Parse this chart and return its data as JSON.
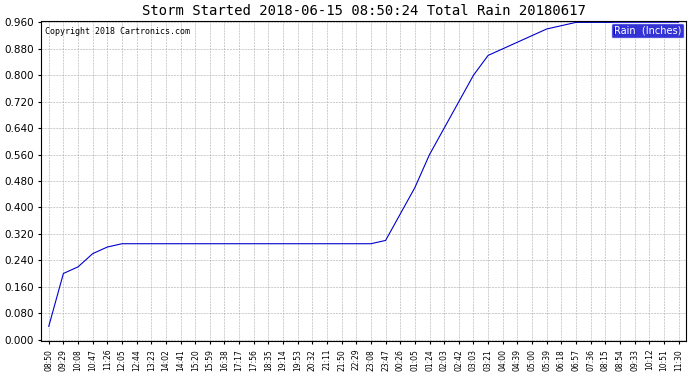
{
  "title": "Storm Started 2018-06-15 08:50:24 Total Rain 20180617",
  "copyright_text": "Copyright 2018 Cartronics.com",
  "legend_label": "Rain  (Inches)",
  "legend_bg": "#0000CC",
  "legend_fg": "#FFFFFF",
  "line_color": "#0000CC",
  "background_color": "#FFFFFF",
  "grid_color": "#AAAAAA",
  "ylim": [
    0.0,
    0.96
  ],
  "yticks": [
    0.0,
    0.08,
    0.16,
    0.24,
    0.32,
    0.4,
    0.48,
    0.56,
    0.64,
    0.72,
    0.8,
    0.88,
    0.96
  ],
  "x_labels": [
    "08:50",
    "09:29",
    "10:08",
    "10:47",
    "11:26",
    "12:05",
    "12:44",
    "13:23",
    "14:02",
    "14:41",
    "15:20",
    "15:59",
    "16:38",
    "17:17",
    "17:56",
    "18:35",
    "19:14",
    "19:53",
    "20:32",
    "21:11",
    "21:50",
    "22:29",
    "23:08",
    "23:47",
    "00:26",
    "01:05",
    "01:24",
    "02:03",
    "02:42",
    "03:03",
    "03:21",
    "04:00",
    "04:39",
    "05:00",
    "05:39",
    "06:18",
    "06:57",
    "07:36",
    "08:15",
    "08:54",
    "09:33",
    "10:12",
    "10:51",
    "11:30"
  ],
  "y_data": [
    0.04,
    0.2,
    0.22,
    0.26,
    0.28,
    0.29,
    0.29,
    0.29,
    0.29,
    0.29,
    0.29,
    0.29,
    0.29,
    0.29,
    0.29,
    0.29,
    0.29,
    0.29,
    0.29,
    0.29,
    0.29,
    0.29,
    0.29,
    0.3,
    0.38,
    0.46,
    0.56,
    0.64,
    0.72,
    0.8,
    0.86,
    0.88,
    0.9,
    0.92,
    0.94,
    0.95,
    0.96,
    0.96,
    0.96,
    0.96,
    0.96,
    0.96,
    0.96,
    0.96
  ]
}
